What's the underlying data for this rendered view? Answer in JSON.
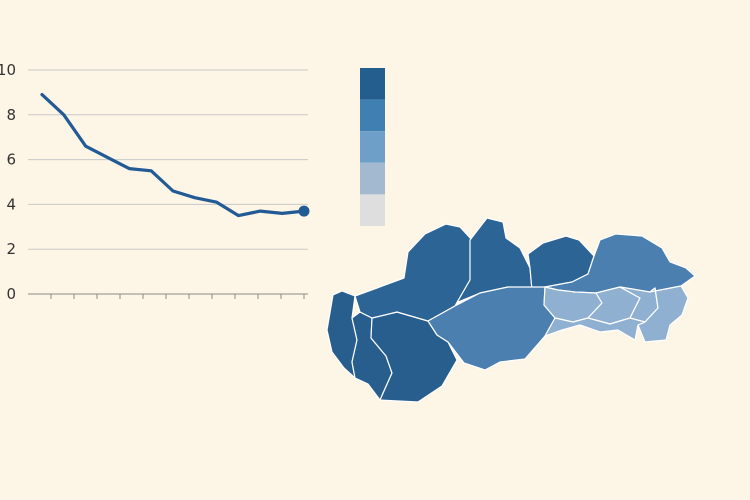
{
  "chart_data": [
    {
      "type": "line",
      "title": "",
      "xlabel": "",
      "ylabel": "",
      "ylim": [
        0,
        10
      ],
      "y_ticks": [
        "0",
        "2",
        "4",
        "6",
        "8",
        "10"
      ],
      "x_tick_count": 12,
      "grid": true,
      "series": [
        {
          "values": [
            8.9,
            8.0,
            6.6,
            6.1,
            5.6,
            5.5,
            4.6,
            4.3,
            4.1,
            3.5,
            3.7,
            3.6,
            3.7
          ]
        }
      ],
      "end_marker": true
    },
    {
      "type": "heatmap",
      "subtype": "choropleth",
      "title": "",
      "legend_classes": 5,
      "regions": [
        {
          "rank": 1
        },
        {
          "rank": 1
        },
        {
          "rank": 1
        },
        {
          "rank": 1
        },
        {
          "rank": 1
        },
        {
          "rank": 2
        },
        {
          "rank": 2
        },
        {
          "rank": 3
        },
        {
          "rank": 3
        },
        {
          "rank": 3
        },
        {
          "rank": 4
        },
        {
          "rank": 4
        },
        {
          "rank": 4
        }
      ]
    }
  ],
  "colors": {
    "background": "#fdf5e6",
    "line": "#215a95",
    "scale": [
      "#235e8f",
      "#3f7fb2",
      "#6d9fc8",
      "#a3b9cf",
      "#dedede"
    ],
    "regions": [
      "#dedede",
      "#8fb0d0",
      "#4a7fb0",
      "#2c6496",
      "#275e8e"
    ]
  }
}
